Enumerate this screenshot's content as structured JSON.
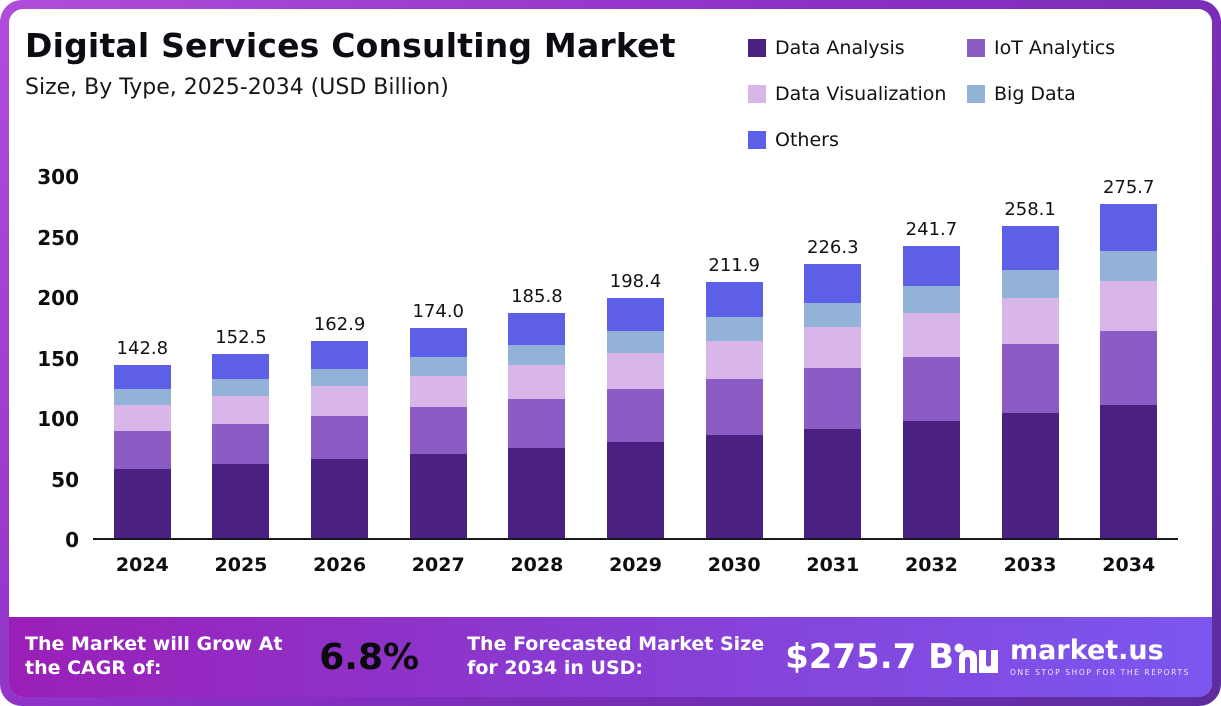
{
  "header": {
    "title": "Digital Services Consulting Market",
    "subtitle": "Size, By Type, 2025-2034 (USD Billion)"
  },
  "chart_data": {
    "type": "bar",
    "stacked": true,
    "title": "Digital Services Consulting Market Size, By Type, 2025-2034 (USD Billion)",
    "categories": [
      "2024",
      "2025",
      "2026",
      "2027",
      "2028",
      "2029",
      "2030",
      "2031",
      "2032",
      "2033",
      "2034"
    ],
    "series": [
      {
        "name": "Data Analysis",
        "color": "#4a2080",
        "values": [
          57.1,
          61.0,
          65.2,
          69.6,
          74.3,
          79.4,
          84.8,
          90.5,
          96.7,
          103.2,
          110.3
        ]
      },
      {
        "name": "IoT Analytics",
        "color": "#8b5cc4",
        "values": [
          31.4,
          33.6,
          35.8,
          38.3,
          40.9,
          43.6,
          46.6,
          49.8,
          53.2,
          56.8,
          60.7
        ]
      },
      {
        "name": "Data Visualization",
        "color": "#d8b6ea",
        "values": [
          21.4,
          22.9,
          24.4,
          26.1,
          27.9,
          29.8,
          31.8,
          33.9,
          36.3,
          38.7,
          41.4
        ]
      },
      {
        "name": "Big Data",
        "color": "#93b2d8",
        "values": [
          12.9,
          13.7,
          14.7,
          15.7,
          16.7,
          17.9,
          19.1,
          20.4,
          21.8,
          23.2,
          24.8
        ]
      },
      {
        "name": "Others",
        "color": "#5d5fe6",
        "values": [
          20.0,
          21.3,
          22.8,
          24.3,
          26.0,
          27.7,
          29.6,
          31.7,
          33.7,
          36.2,
          38.5
        ]
      }
    ],
    "totals": [
      142.8,
      152.5,
      162.9,
      174.0,
      185.8,
      198.4,
      211.9,
      226.3,
      241.7,
      258.1,
      275.7
    ],
    "ylim": [
      0,
      300
    ],
    "yticks": [
      0,
      50,
      100,
      150,
      200,
      250,
      300
    ],
    "grid": false,
    "legend_position": "top-right"
  },
  "footer": {
    "cagr_label": "The Market will Grow At the CAGR of:",
    "cagr_value": "6.8%",
    "forecast_label": "The Forecasted Market Size for 2034 in USD:",
    "forecast_value": "$275.7 B",
    "brand": "market.us",
    "brand_tagline": "ONE STOP SHOP FOR THE REPORTS"
  }
}
